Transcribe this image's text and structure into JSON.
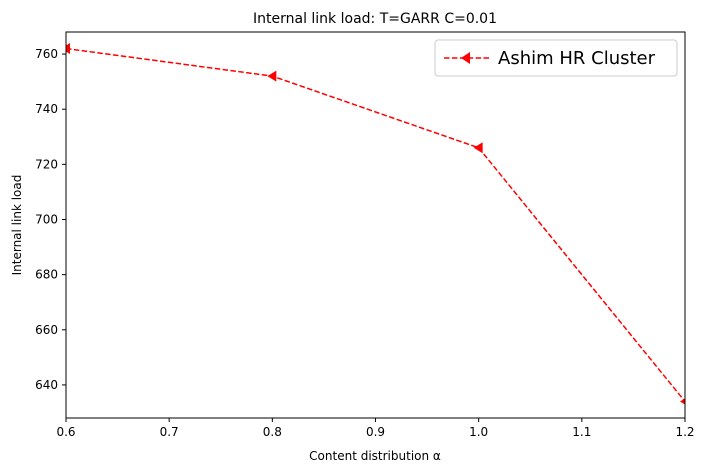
{
  "chart_data": {
    "type": "line",
    "title": "Internal link load: T=GARR C=0.01",
    "xlabel": "Content distribution α",
    "ylabel": "Internal link load",
    "xlim": [
      0.6,
      1.2
    ],
    "ylim": [
      628,
      768
    ],
    "xticks": [
      0.6,
      0.7,
      0.8,
      0.9,
      1.0,
      1.1,
      1.2
    ],
    "xtick_labels": [
      "0.6",
      "0.7",
      "0.8",
      "0.9",
      "1.0",
      "1.1",
      "1.2"
    ],
    "yticks": [
      640,
      660,
      680,
      700,
      720,
      740,
      760
    ],
    "ytick_labels": [
      "640",
      "660",
      "680",
      "700",
      "720",
      "740",
      "760"
    ],
    "grid": false,
    "legend_position": "top-right",
    "series": [
      {
        "name": "Ashim HR Cluster",
        "color": "#ff0000",
        "line_style": "dashed",
        "marker": "triangle-left",
        "x": [
          0.6,
          0.8,
          1.0,
          1.2
        ],
        "y": [
          762,
          752,
          726,
          634
        ]
      }
    ]
  }
}
